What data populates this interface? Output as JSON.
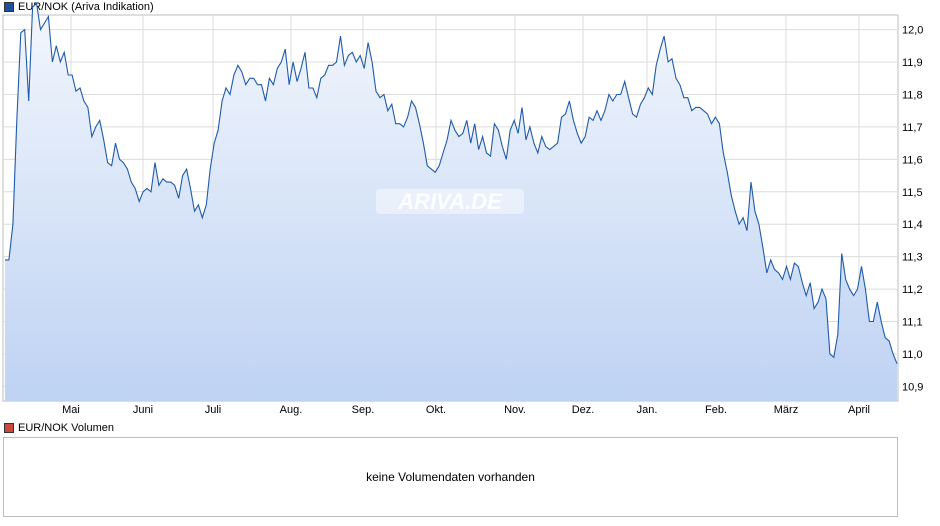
{
  "legend_price": {
    "label": "EUR/NOK (Ariva Indikation)",
    "color": "#1f4e9c"
  },
  "legend_volume": {
    "label": "EUR/NOK Volumen",
    "color": "#c84a3c"
  },
  "watermark": "ARIVA.DE",
  "volume_message": "keine Volumendaten vorhanden",
  "chart_data": {
    "type": "area",
    "x_tick_labels": [
      "Mai",
      "Juni",
      "Juli",
      "Aug.",
      "Sep.",
      "Okt.",
      "Nov.",
      "Dez.",
      "Jan.",
      "Feb.",
      "März",
      "April"
    ],
    "y_tick_labels": [
      "10,9",
      "11,0",
      "11,1",
      "11,2",
      "11,3",
      "11,4",
      "11,5",
      "11,6",
      "11,7",
      "11,8",
      "11,9",
      "12,0"
    ],
    "ylim": [
      10.855,
      12.045
    ],
    "grid": true,
    "legend_position": "top-left",
    "series": [
      {
        "name": "EUR/NOK (Ariva Indikation)",
        "values": [
          11.29,
          11.29,
          11.4,
          11.72,
          11.99,
          12.0,
          11.78,
          12.07,
          12.08,
          12.0,
          12.02,
          12.04,
          11.9,
          11.95,
          11.9,
          11.93,
          11.86,
          11.86,
          11.81,
          11.82,
          11.78,
          11.76,
          11.67,
          11.7,
          11.72,
          11.66,
          11.59,
          11.58,
          11.65,
          11.6,
          11.59,
          11.57,
          11.53,
          11.51,
          11.47,
          11.5,
          11.51,
          11.5,
          11.59,
          11.52,
          11.54,
          11.53,
          11.53,
          11.52,
          11.48,
          11.55,
          11.57,
          11.51,
          11.44,
          11.46,
          11.42,
          11.46,
          11.57,
          11.65,
          11.69,
          11.78,
          11.82,
          11.8,
          11.86,
          11.89,
          11.87,
          11.83,
          11.85,
          11.85,
          11.83,
          11.83,
          11.78,
          11.85,
          11.83,
          11.88,
          11.9,
          11.94,
          11.83,
          11.9,
          11.84,
          11.88,
          11.93,
          11.82,
          11.82,
          11.79,
          11.85,
          11.86,
          11.89,
          11.89,
          11.9,
          11.98,
          11.89,
          11.92,
          11.93,
          11.9,
          11.92,
          11.88,
          11.96,
          11.9,
          11.81,
          11.79,
          11.8,
          11.75,
          11.77,
          11.71,
          11.71,
          11.7,
          11.73,
          11.78,
          11.76,
          11.71,
          11.65,
          11.58,
          11.57,
          11.56,
          11.58,
          11.62,
          11.66,
          11.72,
          11.69,
          11.67,
          11.68,
          11.72,
          11.65,
          11.71,
          11.63,
          11.67,
          11.62,
          11.61,
          11.71,
          11.69,
          11.64,
          11.6,
          11.69,
          11.72,
          11.68,
          11.76,
          11.66,
          11.7,
          11.65,
          11.62,
          11.67,
          11.64,
          11.63,
          11.64,
          11.65,
          11.73,
          11.74,
          11.78,
          11.72,
          11.68,
          11.65,
          11.67,
          11.73,
          11.72,
          11.75,
          11.72,
          11.75,
          11.8,
          11.78,
          11.8,
          11.8,
          11.84,
          11.79,
          11.74,
          11.73,
          11.77,
          11.79,
          11.82,
          11.8,
          11.89,
          11.94,
          11.98,
          11.9,
          11.91,
          11.85,
          11.83,
          11.79,
          11.79,
          11.75,
          11.76,
          11.76,
          11.75,
          11.74,
          11.71,
          11.73,
          11.71,
          11.62,
          11.56,
          11.49,
          11.44,
          11.4,
          11.42,
          11.38,
          11.53,
          11.44,
          11.4,
          11.33,
          11.25,
          11.29,
          11.26,
          11.25,
          11.23,
          11.27,
          11.23,
          11.28,
          11.27,
          11.22,
          11.18,
          11.22,
          11.14,
          11.16,
          11.2,
          11.17,
          11.0,
          10.99,
          11.06,
          11.31,
          11.23,
          11.2,
          11.18,
          11.2,
          11.27,
          11.2,
          11.1,
          11.1,
          11.16,
          11.1,
          11.05,
          11.04,
          11.0,
          10.97
        ],
        "color": "#1f5aab"
      }
    ]
  }
}
